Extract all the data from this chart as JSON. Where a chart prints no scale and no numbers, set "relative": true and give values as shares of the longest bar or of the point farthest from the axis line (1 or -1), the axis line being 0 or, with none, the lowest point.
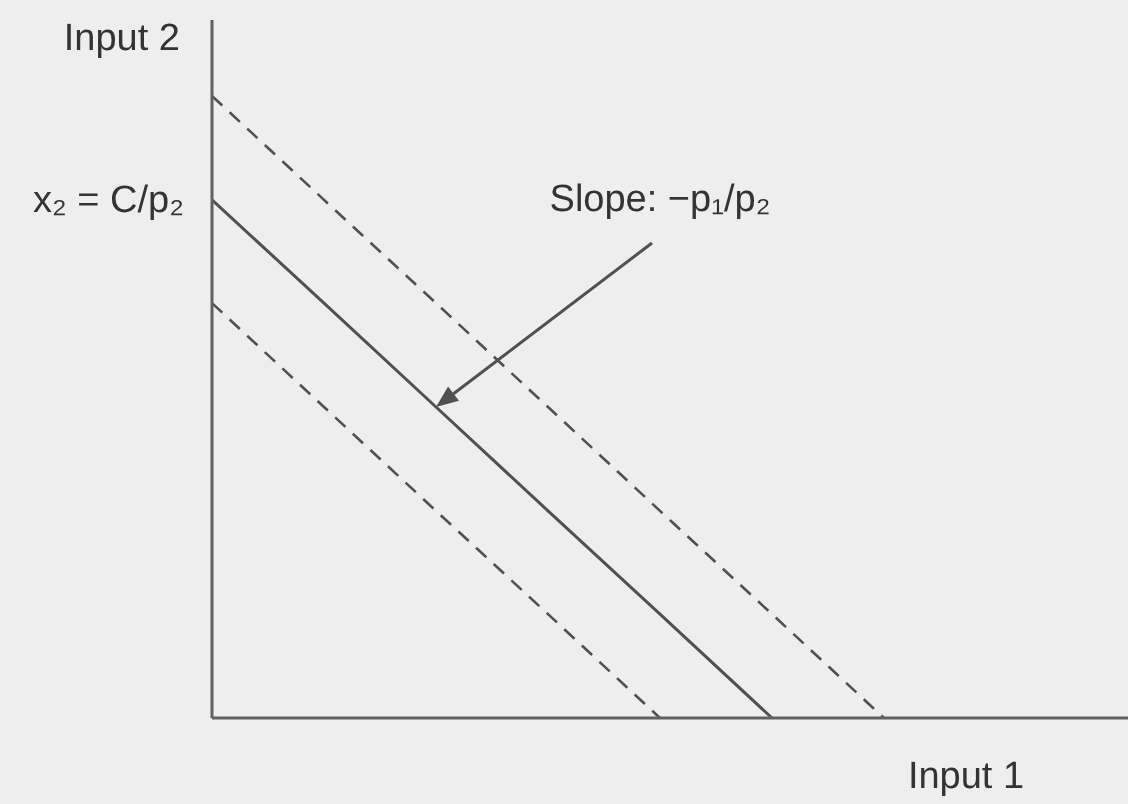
{
  "chart_data": {
    "type": "line",
    "relative": true,
    "xlabel": "Input 1",
    "ylabel": "Input 2",
    "categories": [
      null,
      null,
      null,
      null,
      null,
      null,
      null,
      null,
      null
    ],
    "series": [
      {
        "color": "#505050",
        "line_style": "dashed",
        "values": [
          1,
          0.833,
          0.667,
          0.5,
          0.333,
          0.167,
          0,
          null,
          null
        ]
      },
      {
        "color": "#505050",
        "line_style": "solid",
        "values": [
          0.833,
          0.667,
          0.5,
          0.333,
          0.167,
          0,
          null,
          null,
          null
        ]
      },
      {
        "color": "#505050",
        "line_style": "dashed",
        "values": [
          0.667,
          0.5,
          0.333,
          0.167,
          0,
          null,
          null,
          null,
          null
        ]
      }
    ],
    "annotations": [
      "x₂ = C/p₂",
      "Slope: −p₁/p₂"
    ]
  }
}
